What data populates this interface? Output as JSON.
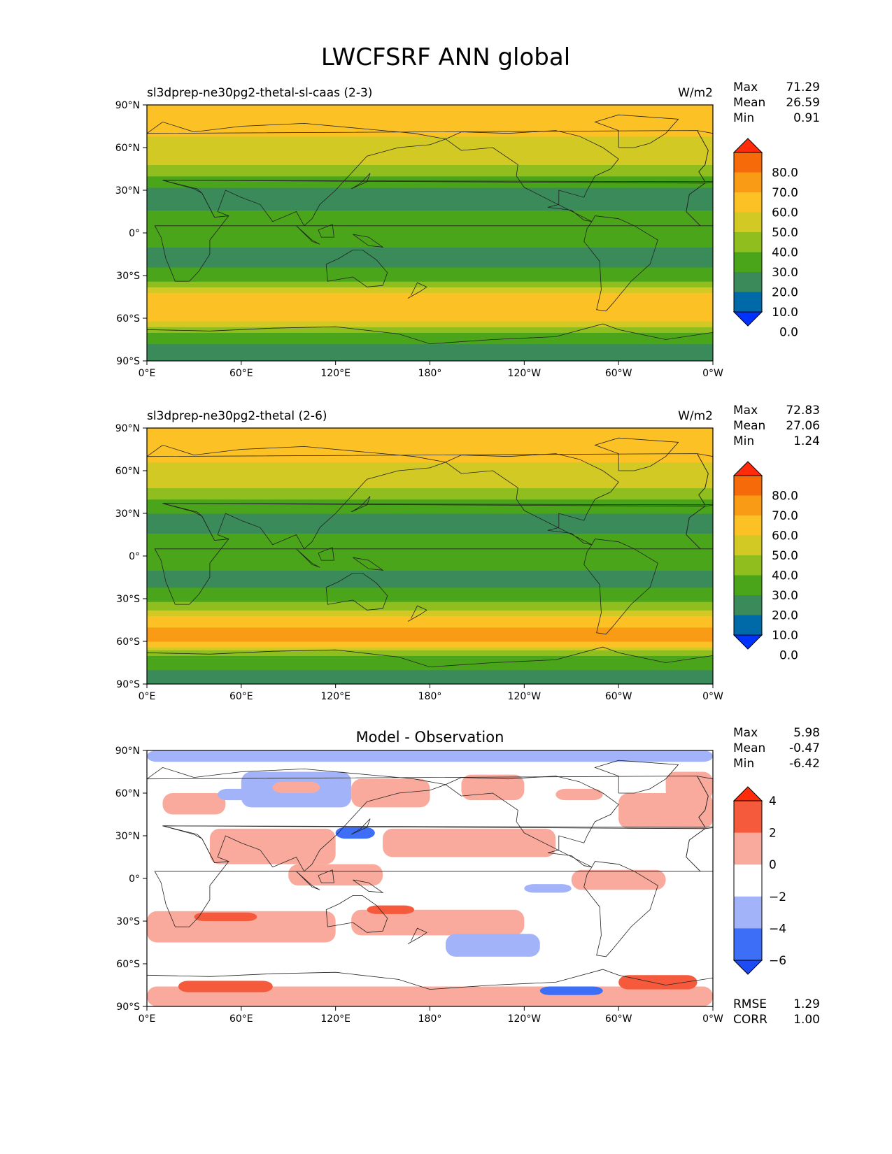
{
  "figure": {
    "title": "LWCFSRF ANN global"
  },
  "axes": {
    "y_ticks": [
      "90°N",
      "60°N",
      "30°N",
      "0°",
      "30°S",
      "60°S",
      "90°S"
    ],
    "x_ticks": [
      "0°E",
      "60°E",
      "120°E",
      "180°",
      "120°W",
      "60°W",
      "0°W"
    ]
  },
  "colors": {
    "abs_levels": [
      "#0033ff",
      "#0069a8",
      "#3a8a5a",
      "#4aa51a",
      "#8fbe1e",
      "#d2c924",
      "#fcc124",
      "#f99b14",
      "#f76a0a",
      "#ff2b0a"
    ],
    "diff_levels": [
      "#1d4cf5",
      "#3d6ef7",
      "#a3b3f9",
      "#ffffff",
      "#f9aa9c",
      "#f65a3c",
      "#ff2b0a"
    ],
    "coastline": "#222222"
  },
  "panels": [
    {
      "id": "model",
      "title_left": "sl3dprep-ne30pg2-thetal-sl-caas (2-3)",
      "title_right": "W/m2",
      "title_center": "",
      "stats": [
        {
          "label": "Max",
          "value": "71.29"
        },
        {
          "label": "Mean",
          "value": "26.59"
        },
        {
          "label": "Min",
          "value": "0.91"
        }
      ],
      "colorbar_ticks": [
        "80.0",
        "70.0",
        "60.0",
        "50.0",
        "40.0",
        "30.0",
        "20.0",
        "10.0",
        "0.0"
      ],
      "footer_stats": []
    },
    {
      "id": "obs",
      "title_left": "sl3dprep-ne30pg2-thetal (2-6)",
      "title_right": "W/m2",
      "title_center": "",
      "stats": [
        {
          "label": "Max",
          "value": "72.83"
        },
        {
          "label": "Mean",
          "value": "27.06"
        },
        {
          "label": "Min",
          "value": "1.24"
        }
      ],
      "colorbar_ticks": [
        "80.0",
        "70.0",
        "60.0",
        "50.0",
        "40.0",
        "30.0",
        "20.0",
        "10.0",
        "0.0"
      ],
      "footer_stats": []
    },
    {
      "id": "diff",
      "title_left": "",
      "title_right": "",
      "title_center": "Model - Observation",
      "stats": [
        {
          "label": "Max",
          "value": "5.98"
        },
        {
          "label": "Mean",
          "value": "-0.47"
        },
        {
          "label": "Min",
          "value": "-6.42"
        }
      ],
      "colorbar_ticks": [
        "4",
        "2",
        "0",
        "−2",
        "−4",
        "−6"
      ],
      "footer_stats": [
        {
          "label": "RMSE",
          "value": "1.29"
        },
        {
          "label": "CORR",
          "value": "1.00"
        }
      ]
    }
  ],
  "chart_data": [
    {
      "type": "heatmap",
      "title": "sl3dprep-ne30pg2-thetal-sl-caas (2-3)",
      "units": "W/m2",
      "xlabel": "",
      "ylabel": "",
      "xlim": [
        0,
        360
      ],
      "ylim": [
        -90,
        90
      ],
      "contour_levels": [
        0,
        10,
        20,
        30,
        40,
        50,
        60,
        70,
        80
      ],
      "extend": "both",
      "zonal_mean_profile": {
        "lat": [
          -90,
          -80,
          -70,
          -60,
          -50,
          -40,
          -30,
          -20,
          -10,
          0,
          10,
          20,
          30,
          40,
          50,
          60,
          70,
          80,
          90
        ],
        "value": [
          15,
          18,
          28,
          58,
          60,
          46,
          22,
          18,
          20,
          22,
          24,
          18,
          18,
          30,
          42,
          45,
          52,
          56,
          58
        ]
      },
      "stats": {
        "max": 71.29,
        "mean": 26.59,
        "min": 0.91
      }
    },
    {
      "type": "heatmap",
      "title": "sl3dprep-ne30pg2-thetal (2-6)",
      "units": "W/m2",
      "xlabel": "",
      "ylabel": "",
      "xlim": [
        0,
        360
      ],
      "ylim": [
        -90,
        90
      ],
      "contour_levels": [
        0,
        10,
        20,
        30,
        40,
        50,
        60,
        70,
        80
      ],
      "extend": "both",
      "zonal_mean_profile": {
        "lat": [
          -90,
          -80,
          -70,
          -60,
          -50,
          -40,
          -30,
          -20,
          -10,
          0,
          10,
          20,
          30,
          40,
          50,
          60,
          70,
          80,
          90
        ],
        "value": [
          16,
          19,
          30,
          60,
          61,
          47,
          23,
          19,
          20,
          22,
          24,
          18,
          19,
          31,
          43,
          46,
          53,
          57,
          60
        ]
      },
      "stats": {
        "max": 72.83,
        "mean": 27.06,
        "min": 1.24
      }
    },
    {
      "type": "heatmap",
      "title": "Model - Observation",
      "xlabel": "",
      "ylabel": "",
      "xlim": [
        0,
        360
      ],
      "ylim": [
        -90,
        90
      ],
      "contour_levels": [
        -6,
        -4,
        -2,
        0,
        2,
        4
      ],
      "extend": "both",
      "stats": {
        "max": 5.98,
        "mean": -0.47,
        "min": -6.42,
        "rmse": 1.29,
        "corr": 1.0
      }
    }
  ]
}
